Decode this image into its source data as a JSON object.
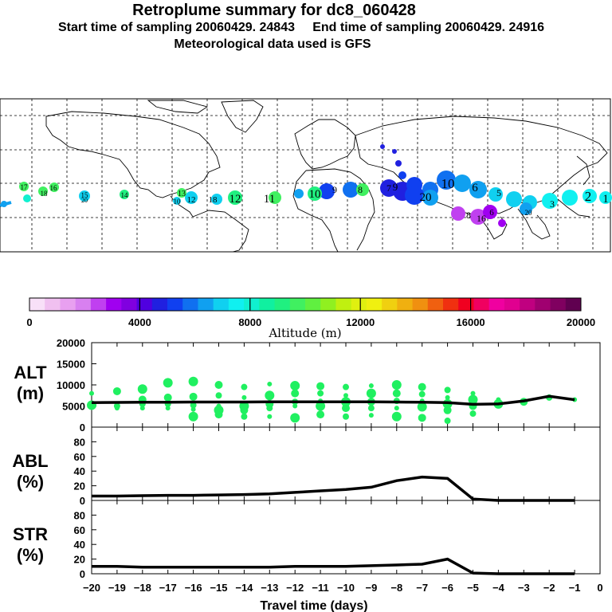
{
  "header": {
    "title": "Retroplume summary for dc8_060428",
    "start_label": "Start time of sampling 20060429. 24843",
    "end_label": "End time of sampling 20060429. 24916",
    "met_label": "Meteorological data used is GFS"
  },
  "colorbar": {
    "ticks": [
      "0",
      "4000",
      "8000",
      "12000",
      "16000",
      "20000"
    ],
    "label": "Altitude (m)",
    "colors": [
      "#f8e0f8",
      "#f0c0f0",
      "#e8a0f0",
      "#d880f0",
      "#c040f0",
      "#a000f0",
      "#8000e0",
      "#5000e0",
      "#2020e0",
      "#1040f0",
      "#1070f0",
      "#10a0f0",
      "#10d0f0",
      "#10f0f0",
      "#10f0d0",
      "#10f0a0",
      "#20f080",
      "#40f060",
      "#60f040",
      "#90f020",
      "#c0f010",
      "#e0f010",
      "#f0f010",
      "#f0d010",
      "#f0b010",
      "#f09010",
      "#f06010",
      "#f03010",
      "#f00020",
      "#f00060",
      "#f000a0",
      "#e00090",
      "#c00080",
      "#a00070",
      "#800060",
      "#600050"
    ]
  },
  "map_labels": [
    {
      "text": "17",
      "color": "#40f060"
    },
    {
      "text": "18",
      "color": "#40f060"
    },
    {
      "text": "16",
      "color": "#40f060"
    },
    {
      "text": "15",
      "color": "#10f0d0"
    },
    {
      "text": "20",
      "color": "#10d0f0"
    },
    {
      "text": "14",
      "color": "#20f080"
    },
    {
      "text": "13",
      "color": "#40f060"
    },
    {
      "text": "12",
      "color": "#10d0f0"
    },
    {
      "text": "10",
      "color": "#10d0f0"
    },
    {
      "text": "18",
      "color": "#10d0f0"
    },
    {
      "text": "12",
      "color": "#10f0d0"
    },
    {
      "text": "11",
      "color": "#40f060"
    },
    {
      "text": "10",
      "color": "#20f080"
    },
    {
      "text": "8",
      "color": "#40f060"
    },
    {
      "text": "9",
      "color": "#1040f0"
    },
    {
      "text": "9",
      "color": "#40f060"
    },
    {
      "text": "7",
      "color": "#1040f0"
    },
    {
      "text": "20",
      "color": "#10a0f0"
    },
    {
      "text": "10",
      "color": "#1070f0"
    },
    {
      "text": "6",
      "color": "#1070f0"
    },
    {
      "text": "5",
      "color": "#10d0f0"
    },
    {
      "text": "3",
      "color": "#10d0f0"
    },
    {
      "text": "2",
      "color": "#10f0f0"
    },
    {
      "text": "1",
      "color": "#10f0f0"
    },
    {
      "text": "6",
      "color": "#c040f0"
    },
    {
      "text": "16",
      "color": "#c040f0"
    },
    {
      "text": "8",
      "color": "#c040f0"
    },
    {
      "text": "20",
      "color": "#10a0f0"
    }
  ],
  "chart_data": [
    {
      "type": "line",
      "panel": "ALT",
      "label_line1": "ALT",
      "label_line2": "(m)",
      "ylim": [
        0,
        20000
      ],
      "yticks": [
        "0",
        "5000",
        "10000",
        "15000",
        "20000"
      ],
      "x": [
        -20,
        -19,
        -18,
        -17,
        -16,
        -15,
        -14,
        -13,
        -12,
        -11,
        -10,
        -9,
        -8,
        -7,
        -6,
        -5,
        -4,
        -3,
        -2,
        -1
      ],
      "series": [
        {
          "name": "median altitude",
          "values": [
            5800,
            5850,
            5900,
            5900,
            5950,
            5950,
            5950,
            6000,
            6000,
            6000,
            6000,
            6000,
            5950,
            5900,
            5800,
            5400,
            5500,
            6200,
            7300,
            6500
          ]
        }
      ],
      "scatter_points": [
        [
          -20,
          8000
        ],
        [
          -20,
          5200
        ],
        [
          -19,
          8500
        ],
        [
          -19,
          5000
        ],
        [
          -19,
          4500
        ],
        [
          -18,
          9000
        ],
        [
          -18,
          6500
        ],
        [
          -18,
          5500
        ],
        [
          -18,
          4500
        ],
        [
          -17,
          10500
        ],
        [
          -17,
          7000
        ],
        [
          -17,
          5500
        ],
        [
          -17,
          4500
        ],
        [
          -16,
          10800
        ],
        [
          -16,
          7200
        ],
        [
          -16,
          5200
        ],
        [
          -16,
          4200
        ],
        [
          -16,
          2500
        ],
        [
          -15,
          10000
        ],
        [
          -15,
          7500
        ],
        [
          -15,
          5000
        ],
        [
          -15,
          4000
        ],
        [
          -15,
          3000
        ],
        [
          -14,
          9500
        ],
        [
          -14,
          7000
        ],
        [
          -14,
          5000
        ],
        [
          -14,
          4000
        ],
        [
          -14,
          2500
        ],
        [
          -13,
          10200
        ],
        [
          -13,
          7500
        ],
        [
          -13,
          5500
        ],
        [
          -13,
          4500
        ],
        [
          -13,
          2500
        ],
        [
          -12,
          9800
        ],
        [
          -12,
          8000
        ],
        [
          -12,
          6000
        ],
        [
          -12,
          5000
        ],
        [
          -12,
          2200
        ],
        [
          -11,
          9700
        ],
        [
          -11,
          8000
        ],
        [
          -11,
          6200
        ],
        [
          -11,
          5000
        ],
        [
          -11,
          3000
        ],
        [
          -10,
          9500
        ],
        [
          -10,
          7500
        ],
        [
          -10,
          6000
        ],
        [
          -10,
          4500
        ],
        [
          -10,
          2500
        ],
        [
          -9,
          9800
        ],
        [
          -9,
          8000
        ],
        [
          -9,
          6000
        ],
        [
          -9,
          4500
        ],
        [
          -9,
          2800
        ],
        [
          -8,
          10000
        ],
        [
          -8,
          8000
        ],
        [
          -8,
          6200
        ],
        [
          -8,
          4500
        ],
        [
          -8,
          2500
        ],
        [
          -7,
          9500
        ],
        [
          -7,
          7800
        ],
        [
          -7,
          6200
        ],
        [
          -7,
          4800
        ],
        [
          -7,
          2200
        ],
        [
          -6,
          8800
        ],
        [
          -6,
          7000
        ],
        [
          -6,
          5500
        ],
        [
          -6,
          4000
        ],
        [
          -6,
          1500
        ],
        [
          -5,
          8000
        ],
        [
          -5,
          6500
        ],
        [
          -5,
          5000
        ],
        [
          -5,
          3200
        ],
        [
          -4,
          6500
        ],
        [
          -4,
          5500
        ],
        [
          -3,
          6000
        ],
        [
          -2,
          7000
        ],
        [
          -1,
          6500
        ]
      ],
      "point_color": "#20f060"
    },
    {
      "type": "line",
      "panel": "ABL",
      "label_line1": "ABL",
      "label_line2": "(%)",
      "ylim": [
        0,
        100
      ],
      "yticks": [
        "0",
        "20",
        "40",
        "60",
        "80"
      ],
      "x": [
        -20,
        -19,
        -18,
        -17,
        -16,
        -15,
        -14,
        -13,
        -12,
        -11,
        -10,
        -9,
        -8,
        -7,
        -6,
        -5,
        -4,
        -3,
        -2,
        -1
      ],
      "series": [
        {
          "name": "fraction in ABL",
          "values": [
            6,
            6,
            6.5,
            7,
            7,
            7.5,
            8,
            9,
            11,
            13,
            15,
            18,
            27,
            32,
            30,
            2,
            0,
            0,
            0,
            0
          ]
        }
      ]
    },
    {
      "type": "line",
      "panel": "STR",
      "label_line1": "STR",
      "label_line2": "(%)",
      "ylim": [
        0,
        100
      ],
      "yticks": [
        "0",
        "20",
        "40",
        "60",
        "80"
      ],
      "xlabel": "Travel time (days)",
      "xticks": [
        "−20",
        "−19",
        "−18",
        "−17",
        "−16",
        "−15",
        "−14",
        "−13",
        "−12",
        "−11",
        "−10",
        "−9",
        "−8",
        "−7",
        "−6",
        "−5",
        "−4",
        "−3",
        "−2",
        "−1",
        "0"
      ],
      "x": [
        -20,
        -19,
        -18,
        -17,
        -16,
        -15,
        -14,
        -13,
        -12,
        -11,
        -10,
        -9,
        -8,
        -7,
        -6,
        -5,
        -4,
        -3,
        -2,
        -1
      ],
      "series": [
        {
          "name": "fraction in stratosphere",
          "values": [
            10,
            10,
            9,
            9,
            9,
            9,
            9,
            9,
            10,
            10,
            10,
            11,
            12,
            13,
            20,
            1,
            0,
            0,
            0,
            0
          ]
        }
      ]
    }
  ]
}
